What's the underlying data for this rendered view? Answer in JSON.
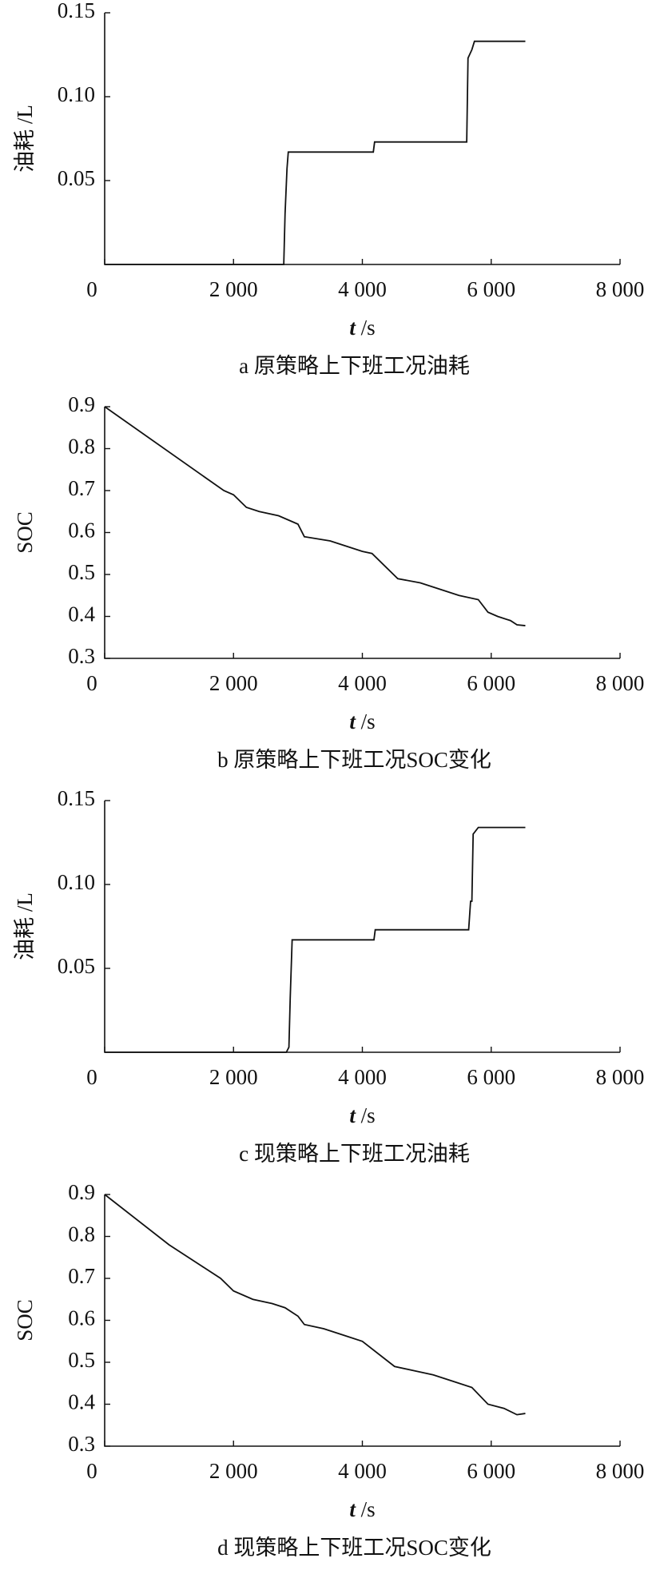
{
  "chart_data": [
    {
      "type": "line",
      "ylabel": "油耗 /L",
      "xlabel": "t /s",
      "caption": "a 原策略上下班工况油耗",
      "color": "#111111",
      "x": [
        0,
        2780,
        2800,
        2830,
        2850,
        4170,
        4190,
        5620,
        5640,
        5700,
        5740,
        6530
      ],
      "values": [
        0,
        0,
        0.03,
        0.057,
        0.067,
        0.067,
        0.073,
        0.073,
        0.123,
        0.128,
        0.133,
        0.133
      ],
      "xlim": [
        0,
        8000
      ],
      "ylim": [
        0,
        0.15
      ],
      "xticks": [
        0,
        {
          "value": 2000,
          "label": "2 000"
        },
        {
          "value": 4000,
          "label": "4 000"
        },
        {
          "value": 6000,
          "label": "6 000"
        },
        {
          "value": 8000,
          "label": "8 000"
        }
      ],
      "yticks": [
        0.05,
        {
          "value": 0.1,
          "label": "0.10"
        },
        0.15
      ],
      "grid": false
    },
    {
      "type": "line",
      "ylabel": "SOC",
      "xlabel": "t /s",
      "caption": "b 原策略上下班工况SOC变化",
      "color": "#111111",
      "x": [
        0,
        1850,
        2000,
        2200,
        2400,
        2700,
        3000,
        3100,
        3500,
        3700,
        4000,
        4150,
        4550,
        4900,
        5200,
        5500,
        5800,
        5950,
        6100,
        6300,
        6400,
        6530
      ],
      "values": [
        0.9,
        0.7,
        0.69,
        0.66,
        0.65,
        0.64,
        0.62,
        0.59,
        0.58,
        0.57,
        0.555,
        0.55,
        0.49,
        0.48,
        0.465,
        0.45,
        0.44,
        0.41,
        0.4,
        0.39,
        0.38,
        0.378
      ],
      "xlim": [
        0,
        8000
      ],
      "ylim": [
        0.3,
        0.9
      ],
      "xticks": [
        0,
        {
          "value": 2000,
          "label": "2 000"
        },
        {
          "value": 4000,
          "label": "4 000"
        },
        {
          "value": 6000,
          "label": "6 000"
        },
        {
          "value": 8000,
          "label": "8 000"
        }
      ],
      "yticks": [
        0.3,
        0.4,
        0.5,
        0.6,
        0.7,
        0.8,
        0.9
      ],
      "grid": false
    },
    {
      "type": "line",
      "ylabel": "油耗 /L",
      "xlabel": "t /s",
      "caption": "c 现策略上下班工况油耗",
      "color": "#111111",
      "x": [
        0,
        2820,
        2860,
        2880,
        2910,
        4180,
        4200,
        5650,
        5680,
        5700,
        5720,
        5800,
        6530
      ],
      "values": [
        0,
        0,
        0.003,
        0.032,
        0.067,
        0.067,
        0.073,
        0.073,
        0.09,
        0.09,
        0.13,
        0.134,
        0.134
      ],
      "xlim": [
        0,
        8000
      ],
      "ylim": [
        0,
        0.15
      ],
      "xticks": [
        0,
        {
          "value": 2000,
          "label": "2 000"
        },
        {
          "value": 4000,
          "label": "4 000"
        },
        {
          "value": 6000,
          "label": "6 000"
        },
        {
          "value": 8000,
          "label": "8 000"
        }
      ],
      "yticks": [
        0.05,
        {
          "value": 0.1,
          "label": "0.10"
        },
        0.15
      ],
      "grid": false
    },
    {
      "type": "line",
      "ylabel": "SOC",
      "xlabel": "t /s",
      "caption": "d 现策略上下班工况SOC变化",
      "color": "#111111",
      "x": [
        0,
        1000,
        1300,
        1500,
        1800,
        2000,
        2300,
        2600,
        2800,
        3000,
        3100,
        3400,
        3700,
        4000,
        4500,
        4800,
        5100,
        5400,
        5700,
        5950,
        6200,
        6400,
        6530
      ],
      "values": [
        0.9,
        0.78,
        0.75,
        0.73,
        0.7,
        0.67,
        0.65,
        0.64,
        0.63,
        0.61,
        0.59,
        0.58,
        0.565,
        0.55,
        0.49,
        0.48,
        0.47,
        0.455,
        0.44,
        0.4,
        0.39,
        0.375,
        0.378
      ],
      "xlim": [
        0,
        8000
      ],
      "ylim": [
        0.3,
        0.9
      ],
      "xticks": [
        0,
        {
          "value": 2000,
          "label": "2 000"
        },
        {
          "value": 4000,
          "label": "4 000"
        },
        {
          "value": 6000,
          "label": "6 000"
        },
        {
          "value": 8000,
          "label": "8 000"
        }
      ],
      "yticks": [
        0.3,
        0.4,
        0.5,
        0.6,
        0.7,
        0.8,
        0.9
      ],
      "grid": false
    }
  ]
}
